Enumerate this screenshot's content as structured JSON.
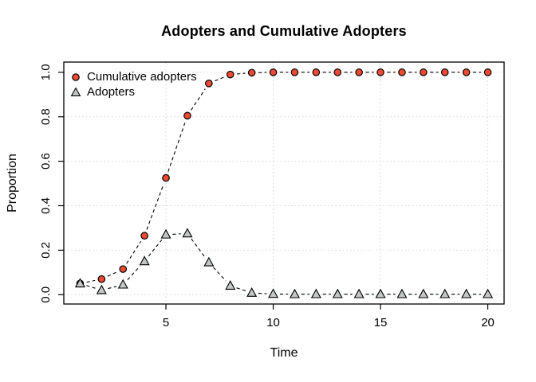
{
  "chart_data": {
    "type": "line",
    "title": "Adopters and Cumulative Adopters",
    "xlabel": "Time",
    "ylabel": "Proportion",
    "x": [
      1,
      2,
      3,
      4,
      5,
      6,
      7,
      8,
      9,
      10,
      11,
      12,
      13,
      14,
      15,
      16,
      17,
      18,
      19,
      20
    ],
    "series": [
      {
        "name": "Cumulative adopters",
        "marker": "circle",
        "marker_fill": "#EC4A33",
        "line_color": "#000000",
        "line_style": "dashed",
        "values": [
          0.05,
          0.07,
          0.115,
          0.265,
          0.525,
          0.805,
          0.95,
          0.99,
          0.998,
          1.0,
          1.0,
          1.0,
          1.0,
          1.0,
          1.0,
          1.0,
          1.0,
          1.0,
          1.0,
          1.0
        ]
      },
      {
        "name": "Adopters",
        "marker": "triangle-up",
        "marker_fill": "#C2C6C6",
        "line_color": "#000000",
        "line_style": "dashed",
        "values": [
          0.05,
          0.02,
          0.045,
          0.15,
          0.27,
          0.275,
          0.145,
          0.04,
          0.008,
          0.003,
          0.002,
          0.002,
          0.002,
          0.002,
          0.002,
          0.002,
          0.002,
          0.002,
          0.002,
          0.002
        ]
      }
    ],
    "xticks": {
      "labels": [
        "5",
        "10",
        "15",
        "20"
      ],
      "values": [
        5,
        10,
        15,
        20
      ]
    },
    "yticks": {
      "labels": [
        "0.0",
        "0.2",
        "0.4",
        "0.6",
        "0.8",
        "1.0"
      ],
      "values": [
        0,
        0.2,
        0.4,
        0.6,
        0.8,
        1.0
      ]
    },
    "xlim": [
      0.24,
      20.76
    ],
    "ylim": [
      -0.042,
      1.046
    ],
    "grid": {
      "on": true,
      "style": "dotted",
      "color": "#D6D6D6"
    },
    "legend_position": "top-left",
    "axis_color": "#000000",
    "background": "#FFFFFF"
  }
}
